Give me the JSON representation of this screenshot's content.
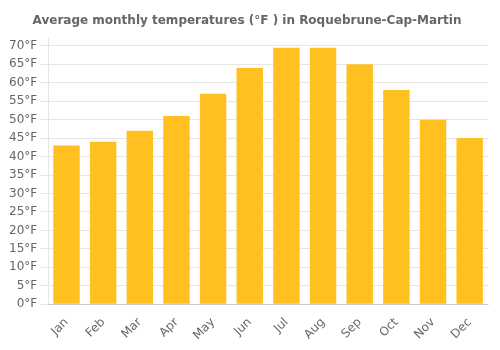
{
  "chart_data": {
    "type": "bar",
    "title": "Average monthly temperatures (°F ) in Roquebrune-Cap-Martin",
    "categories": [
      "Jan",
      "Feb",
      "Mar",
      "Apr",
      "May",
      "Jun",
      "Jul",
      "Aug",
      "Sep",
      "Oct",
      "Nov",
      "Dec"
    ],
    "values": [
      43,
      44,
      47,
      51,
      57,
      64,
      69.5,
      69.5,
      65,
      58,
      50,
      45
    ],
    "color": "#FFC020",
    "ylim": [
      0,
      72
    ],
    "yticks": [
      {
        "value": 0,
        "label": "0°F"
      },
      {
        "value": 5,
        "label": "5°F"
      },
      {
        "value": 10,
        "label": "10°F"
      },
      {
        "value": 15,
        "label": "15°F"
      },
      {
        "value": 20,
        "label": "20°F"
      },
      {
        "value": 25,
        "label": "25°F"
      },
      {
        "value": 30,
        "label": "30°F"
      },
      {
        "value": 35,
        "label": "35°F"
      },
      {
        "value": 40,
        "label": "40°F"
      },
      {
        "value": 45,
        "label": "45°F"
      },
      {
        "value": 50,
        "label": "50°F"
      },
      {
        "value": 55,
        "label": "55°F"
      },
      {
        "value": 60,
        "label": "60°F"
      },
      {
        "value": 65,
        "label": "65°F"
      },
      {
        "value": 70,
        "label": "70°F"
      }
    ],
    "grid": true
  }
}
